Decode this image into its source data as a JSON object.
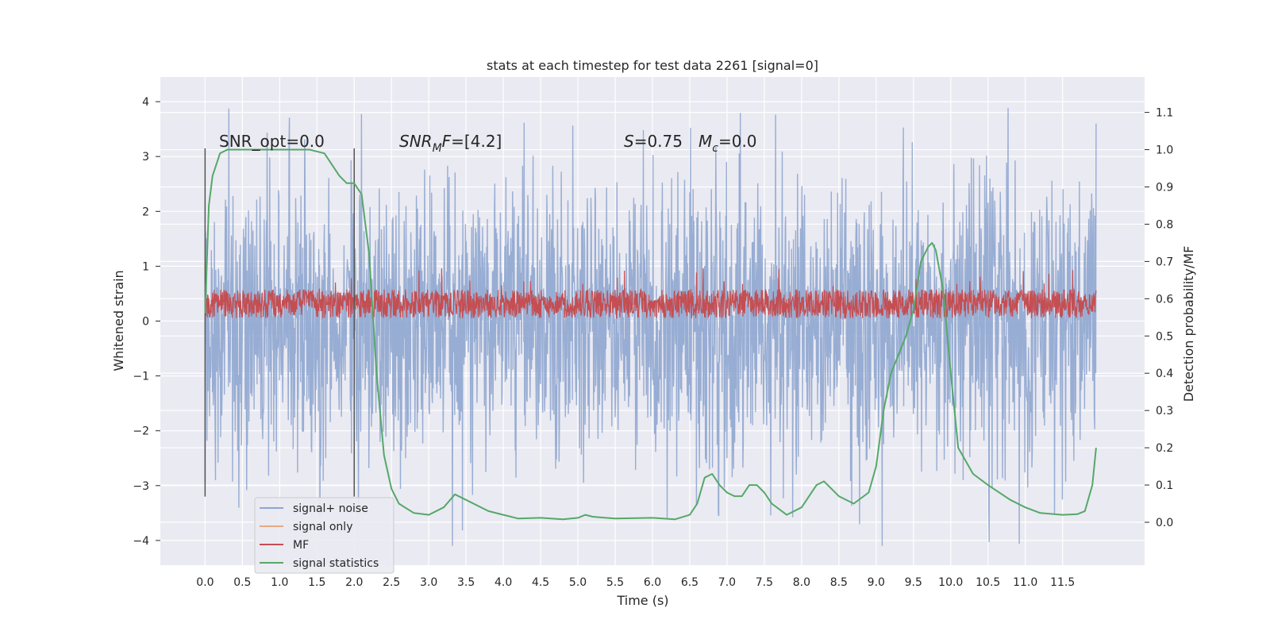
{
  "chart_data": {
    "type": "line",
    "title": "stats at each timestep for test data 2261 [signal=0]",
    "xlabel": "Time (s)",
    "ylabel": "Whitened strain",
    "y2label": "Detection probability/MF",
    "xlim": [
      -0.6,
      12.6
    ],
    "ylim": [
      -4.45,
      4.45
    ],
    "y2lim": [
      -0.115,
      1.195
    ],
    "x_ticks": [
      0.0,
      0.5,
      1.0,
      1.5,
      2.0,
      2.5,
      3.0,
      3.5,
      4.0,
      4.5,
      5.0,
      5.5,
      6.0,
      6.5,
      7.0,
      7.5,
      8.0,
      8.5,
      9.0,
      9.5,
      10.0,
      10.5,
      11.0,
      11.5
    ],
    "x_tick_labels": [
      "0.0",
      "0.5",
      "1.0",
      "1.5",
      "2.0",
      "2.5",
      "3.0",
      "3.5",
      "4.0",
      "4.5",
      "5.0",
      "5.5",
      "6.0",
      "6.5",
      "7.0",
      "7.5",
      "8.0",
      "8.5",
      "9.0",
      "9.5",
      "10.0",
      "10.5",
      "11.0",
      "11.5"
    ],
    "y_ticks": [
      -4,
      -3,
      -2,
      -1,
      0,
      1,
      2,
      3,
      4
    ],
    "y_tick_labels": [
      "−4",
      "−3",
      "−2",
      "−1",
      "0",
      "1",
      "2",
      "3",
      "4"
    ],
    "y2_ticks": [
      0.0,
      0.1,
      0.2,
      0.3,
      0.4,
      0.5,
      0.6,
      0.7,
      0.8,
      0.9,
      1.0,
      1.1
    ],
    "y2_tick_labels": [
      "0.0",
      "0.1",
      "0.2",
      "0.3",
      "0.4",
      "0.5",
      "0.6",
      "0.7",
      "0.8",
      "0.9",
      "1.0",
      "1.1"
    ],
    "grid": true,
    "legend_position": "lower-left",
    "legend": [
      {
        "label": "signal+ noise",
        "color": "#8fa6cf"
      },
      {
        "label": "signal only",
        "color": "#e8a884"
      },
      {
        "label": "MF",
        "color": "#c44e52"
      },
      {
        "label": "signal statistics",
        "color": "#55a868"
      }
    ],
    "annotations": {
      "snr_opt": "SNR_opt=0.0",
      "snr_mf_main": "SNR",
      "snr_mf_sub": "M",
      "snr_mf_rest": "F=[4.2]",
      "s_main": "S",
      "s_rest": "=0.75",
      "mc_main": "M",
      "mc_sub": "c",
      "mc_rest": "=0.0"
    },
    "vertical_lines_x": [
      0.0,
      2.0
    ],
    "vertical_lines_yrange": [
      -3.2,
      3.15
    ],
    "series": [
      {
        "name": "signal+ noise",
        "kind": "noise",
        "x_range": [
          0.0,
          11.95
        ],
        "typical_abs_amplitude": 1.25,
        "peak_max": 4.05,
        "peak_min": -4.1,
        "color": "#8fa6cf"
      },
      {
        "name": "MF",
        "kind": "noise",
        "x_range": [
          0.0,
          11.95
        ],
        "base_low": 0.05,
        "base_high": 0.58,
        "peak_max": 1.0,
        "color": "#c44e52"
      },
      {
        "name": "signal statistics",
        "kind": "line",
        "axis": "y2",
        "color": "#55a868",
        "x": [
          0.0,
          0.05,
          0.1,
          0.2,
          0.3,
          0.5,
          1.0,
          1.4,
          1.6,
          1.7,
          1.8,
          1.9,
          2.0,
          2.1,
          2.2,
          2.3,
          2.4,
          2.5,
          2.6,
          2.8,
          3.0,
          3.2,
          3.35,
          3.5,
          3.8,
          4.0,
          4.2,
          4.5,
          4.8,
          5.0,
          5.1,
          5.2,
          5.5,
          6.0,
          6.3,
          6.5,
          6.6,
          6.7,
          6.8,
          6.9,
          7.0,
          7.1,
          7.2,
          7.3,
          7.4,
          7.5,
          7.6,
          7.8,
          8.0,
          8.2,
          8.3,
          8.5,
          8.7,
          8.9,
          9.0,
          9.1,
          9.2,
          9.3,
          9.4,
          9.5,
          9.6,
          9.7,
          9.75,
          9.8,
          9.9,
          10.0,
          10.1,
          10.3,
          10.5,
          10.8,
          11.0,
          11.2,
          11.5,
          11.7,
          11.8,
          11.9,
          11.95
        ],
        "y": [
          0.56,
          0.85,
          0.93,
          0.99,
          1.0,
          1.0,
          1.0,
          1.0,
          0.99,
          0.96,
          0.93,
          0.91,
          0.91,
          0.88,
          0.72,
          0.4,
          0.18,
          0.09,
          0.05,
          0.025,
          0.02,
          0.04,
          0.075,
          0.06,
          0.03,
          0.02,
          0.01,
          0.012,
          0.008,
          0.012,
          0.02,
          0.015,
          0.01,
          0.012,
          0.008,
          0.02,
          0.05,
          0.12,
          0.13,
          0.1,
          0.08,
          0.07,
          0.07,
          0.1,
          0.1,
          0.08,
          0.05,
          0.02,
          0.04,
          0.1,
          0.11,
          0.07,
          0.05,
          0.08,
          0.15,
          0.3,
          0.4,
          0.45,
          0.5,
          0.57,
          0.7,
          0.74,
          0.75,
          0.73,
          0.62,
          0.4,
          0.2,
          0.13,
          0.1,
          0.06,
          0.04,
          0.025,
          0.02,
          0.022,
          0.03,
          0.1,
          0.2
        ]
      }
    ]
  }
}
